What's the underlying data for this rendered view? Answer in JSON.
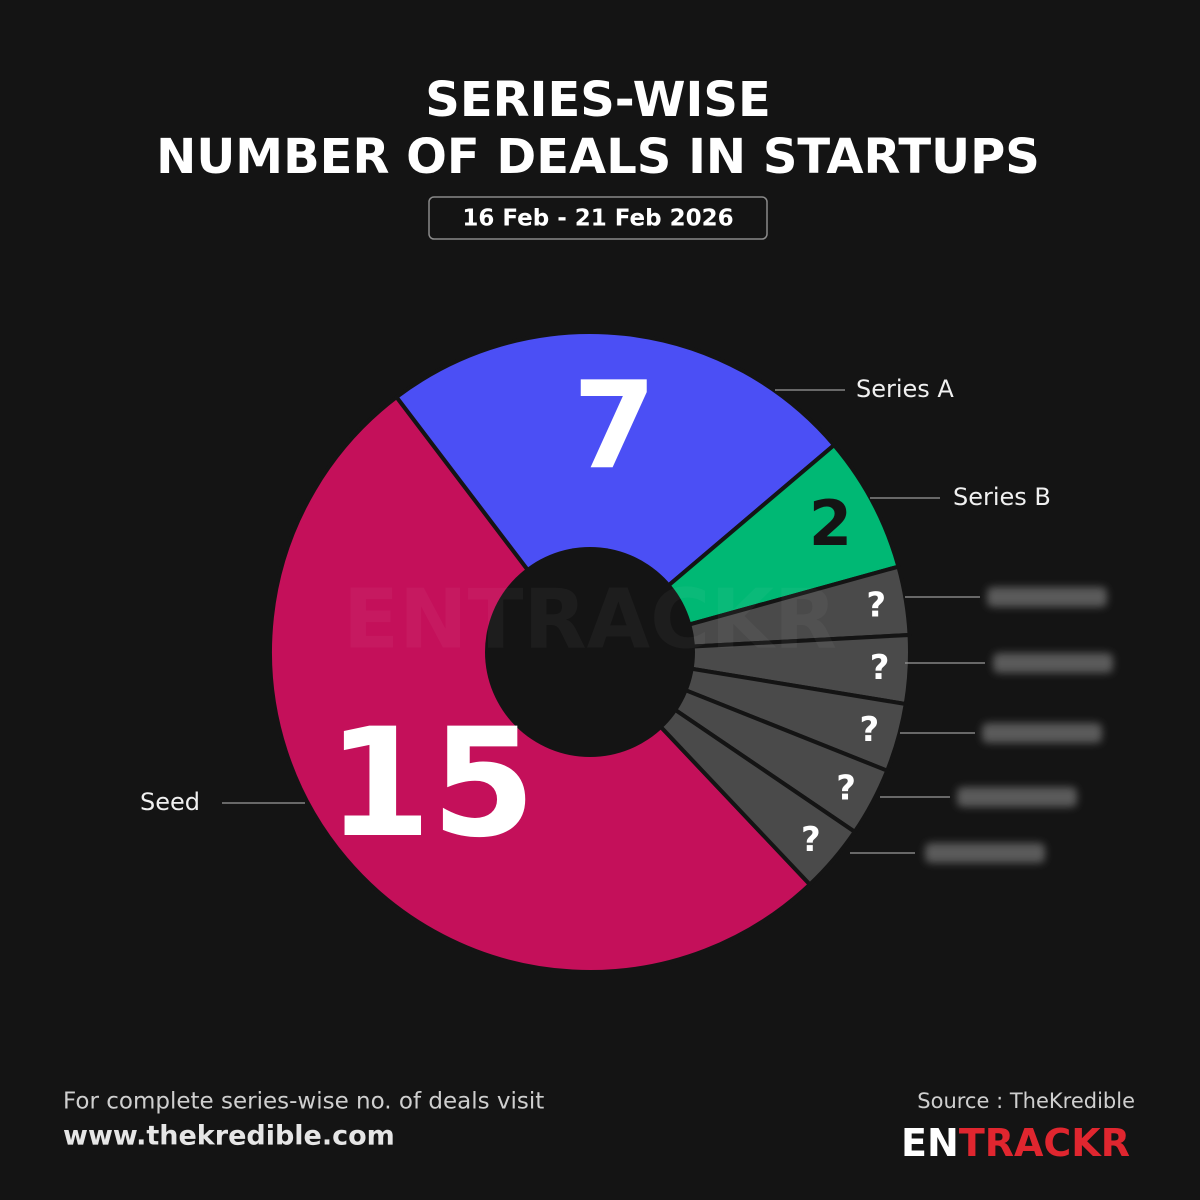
{
  "chart_data": {
    "type": "donut",
    "title": [
      "SERIES-WISE",
      "NUMBER OF DEALS IN STARTUPS"
    ],
    "date_range": "16 Feb - 21 Feb 2026",
    "categories": [
      "Seed",
      "Series A",
      "Series B",
      null,
      null,
      null,
      null,
      null
    ],
    "values": [
      15,
      7,
      2,
      1,
      1,
      1,
      1,
      1
    ],
    "value_labels": [
      "15",
      "7",
      "2",
      "?",
      "?",
      "?",
      "?",
      "?"
    ],
    "colors": [
      "#c4105a",
      "#4b4ff5",
      "#00b874",
      "#4a4a4a",
      "#4a4a4a",
      "#4a4a4a",
      "#4a4a4a",
      "#4a4a4a"
    ],
    "label_colors": [
      "#ffffff",
      "#ffffff",
      "#141414",
      "#ffffff",
      "#ffffff",
      "#ffffff",
      "#ffffff",
      "#ffffff"
    ],
    "watermark": "ENTRACKR",
    "note": "For complete series-wise no. of deals visit",
    "link": "www.thekredible.com",
    "source": "Source : TheKredible",
    "brand": "ENTRACKR"
  }
}
